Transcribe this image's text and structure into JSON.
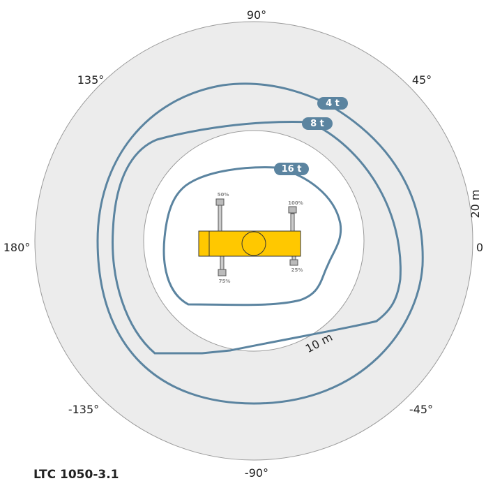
{
  "model": "LTC 1050-3.1",
  "angles": {
    "a0": "0",
    "a45": "45°",
    "a90": "90°",
    "a135": "135°",
    "a180": "180°",
    "am135": "-135°",
    "am90": "-90°",
    "am45": "-45°"
  },
  "ranges": {
    "r10": "10 m",
    "r20": "20 m"
  },
  "load_curves": [
    {
      "label": "4 t",
      "color": "#5b84a0"
    },
    {
      "label": "8 t",
      "color": "#5b84a0"
    },
    {
      "label": "16 t",
      "color": "#5b84a0"
    }
  ],
  "outriggers": {
    "front_left": "50%",
    "front_right": "100%",
    "rear_left": "75%",
    "rear_right": "25%"
  },
  "colors": {
    "outer_ring": "#ececec",
    "inner_disc": "#ffffff",
    "crane_body": "#ffc800",
    "curve": "#5b84a0"
  }
}
